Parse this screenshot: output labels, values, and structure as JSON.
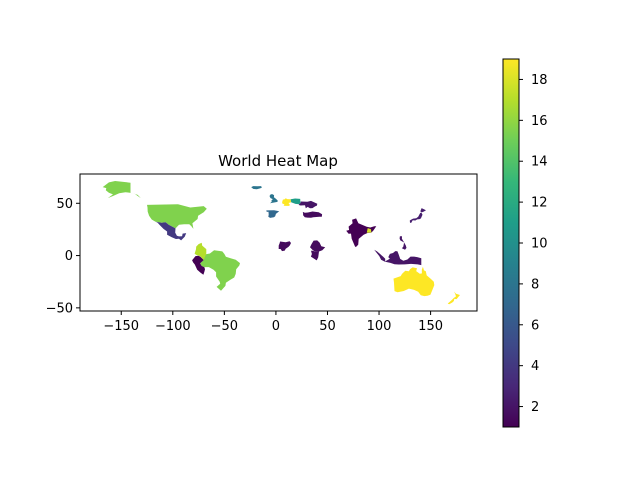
{
  "chart_data": {
    "type": "choropleth",
    "title": "World Heat Map",
    "xlabel": "",
    "ylabel": "",
    "xlim": [
      -190,
      195
    ],
    "ylim": [
      -53,
      78
    ],
    "x_ticks": [
      -150,
      -100,
      -50,
      0,
      50,
      100,
      150
    ],
    "x_tick_labels": [
      "−150",
      "−100",
      "−50",
      "0",
      "50",
      "100",
      "150"
    ],
    "y_ticks": [
      50,
      0,
      -50
    ],
    "y_tick_labels": [
      "50",
      "0",
      "−50"
    ],
    "colorbar": {
      "colormap": "viridis",
      "range": [
        1,
        19
      ],
      "ticks": [
        2,
        4,
        6,
        8,
        10,
        12,
        14,
        16,
        18
      ],
      "tick_labels": [
        "2",
        "4",
        "6",
        "8",
        "10",
        "12",
        "14",
        "16",
        "18"
      ],
      "stops": [
        "#440154",
        "#482878",
        "#3e4989",
        "#31688e",
        "#26828e",
        "#1f9e89",
        "#35b779",
        "#6ece58",
        "#b5de2b",
        "#fde725"
      ]
    },
    "regions": [
      {
        "name": "United States",
        "value": 15.5
      },
      {
        "name": "Alaska",
        "value": 15.5
      },
      {
        "name": "Mexico",
        "value": 4
      },
      {
        "name": "Brazil",
        "value": 15.5
      },
      {
        "name": "Colombia",
        "value": 17
      },
      {
        "name": "Peru",
        "value": 1
      },
      {
        "name": "Iceland",
        "value": 8
      },
      {
        "name": "United Kingdom",
        "value": 8
      },
      {
        "name": "Spain",
        "value": 7
      },
      {
        "name": "Germany",
        "value": 19
      },
      {
        "name": "Poland",
        "value": 11
      },
      {
        "name": "Ukraine",
        "value": 2
      },
      {
        "name": "Turkey",
        "value": 1.5
      },
      {
        "name": "Nigeria",
        "value": 1.5
      },
      {
        "name": "Ethiopia",
        "value": 1.5
      },
      {
        "name": "Kenya",
        "value": 1.5
      },
      {
        "name": "India",
        "value": 1
      },
      {
        "name": "Bangladesh",
        "value": 18
      },
      {
        "name": "Japan",
        "value": 2.5
      },
      {
        "name": "Philippines",
        "value": 2
      },
      {
        "name": "Indonesia",
        "value": 2
      },
      {
        "name": "Australia",
        "value": 19
      },
      {
        "name": "New Zealand",
        "value": 19
      }
    ]
  }
}
